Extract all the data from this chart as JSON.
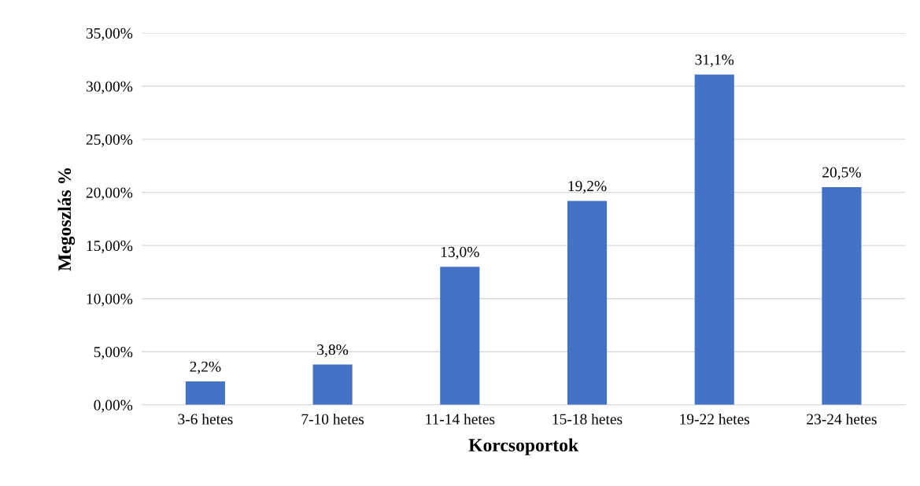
{
  "chart_data": {
    "type": "bar",
    "xlabel": "Korcsoportok",
    "ylabel": "Megoszlás %",
    "categories": [
      "3-6 hetes",
      "7-10 hetes",
      "11-14 hetes",
      "15-18 hetes",
      "19-22 hetes",
      "23-24 hetes"
    ],
    "values": [
      2.2,
      3.8,
      13.0,
      19.2,
      31.1,
      20.5
    ],
    "value_labels": [
      "2,2%",
      "3,8%",
      "13,0%",
      "19,2%",
      "31,1%",
      "20,5%"
    ],
    "color": "#4472c4",
    "ylim": [
      0,
      35
    ],
    "yticks": [
      {
        "value": 0,
        "label": "0,00%"
      },
      {
        "value": 5,
        "label": "5,00%"
      },
      {
        "value": 10,
        "label": "10,00%"
      },
      {
        "value": 15,
        "label": "15,00%"
      },
      {
        "value": 20,
        "label": "20,00%"
      },
      {
        "value": 25,
        "label": "25,00%"
      },
      {
        "value": 30,
        "label": "30,00%"
      },
      {
        "value": 35,
        "label": "35,00%"
      }
    ],
    "grid": "y",
    "legend": false
  }
}
